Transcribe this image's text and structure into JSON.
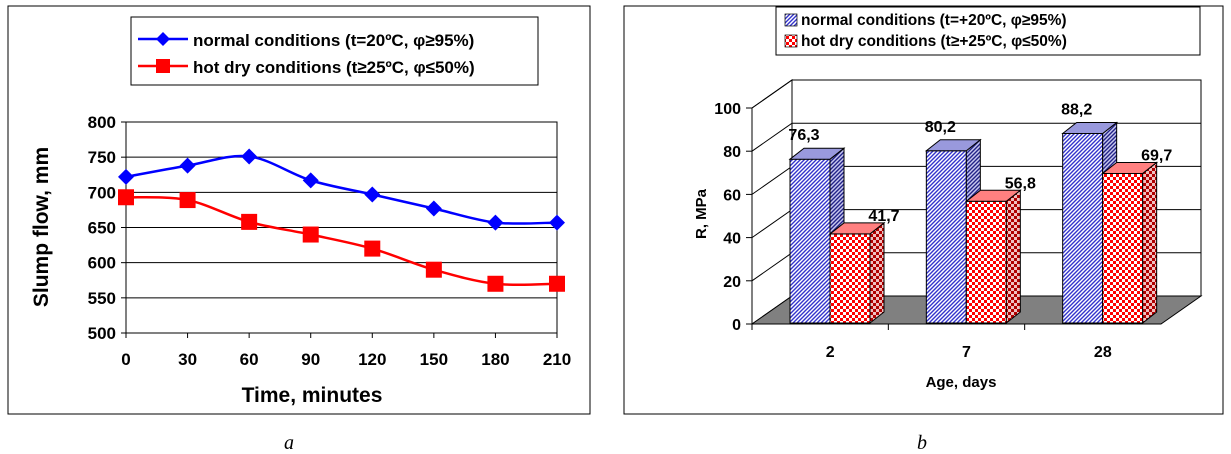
{
  "chart_data": [
    {
      "type": "line",
      "xlabel": "Time, minutes",
      "ylabel": "Slump flow, mm",
      "x": [
        0,
        30,
        60,
        90,
        120,
        150,
        180,
        210
      ],
      "xlim": [
        0,
        210
      ],
      "ylim": [
        500,
        800
      ],
      "yticks": [
        500,
        550,
        600,
        650,
        700,
        750,
        800
      ],
      "grid": "horizontal",
      "legend_position": "top",
      "series": [
        {
          "name": "normal conditions (t=20ºC, φ≥95%)",
          "color": "#0000ff",
          "marker": "diamond",
          "values": [
            722,
            738,
            751,
            717,
            697,
            677,
            657,
            657
          ]
        },
        {
          "name": "hot dry conditions (t≥25ºC, φ≤50%)",
          "color": "#ff0000",
          "marker": "square",
          "values": [
            693,
            689,
            658,
            640,
            620,
            590,
            570,
            570
          ]
        }
      ],
      "caption": "a"
    },
    {
      "type": "bar",
      "xlabel": "Age, days",
      "ylabel": "R, MPa",
      "categories": [
        "2",
        "7",
        "28"
      ],
      "ylim": [
        0,
        100
      ],
      "yticks": [
        0,
        20,
        40,
        60,
        80,
        100
      ],
      "grid": "horizontal",
      "legend_position": "top",
      "series": [
        {
          "name": "normal conditions (t=+20ºC, φ≥95%)",
          "color": "#3333cc",
          "pattern": "diagonal-hatch",
          "values": [
            76.3,
            80.2,
            88.2
          ],
          "labels": [
            "76,3",
            "80,2",
            "88,2"
          ]
        },
        {
          "name": "hot dry conditions (t≥+25ºC, φ≤50%)",
          "color": "#ff0000",
          "pattern": "checkerboard",
          "values": [
            41.7,
            56.8,
            69.7
          ],
          "labels": [
            "41,7",
            "56,8",
            "69,7"
          ]
        }
      ],
      "caption": "b"
    }
  ]
}
